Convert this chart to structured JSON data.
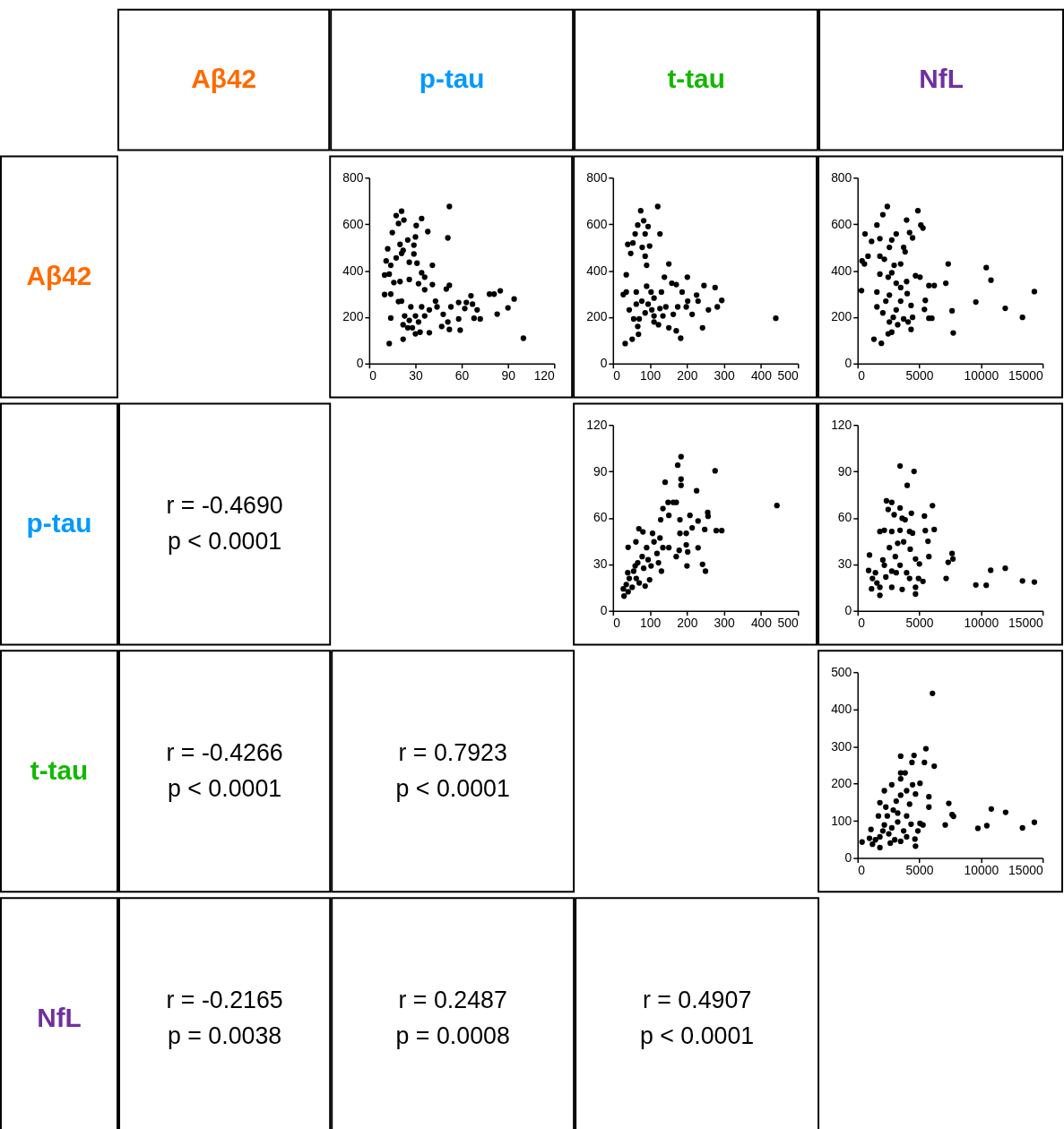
{
  "chart_data": [
    {
      "type": "other",
      "title": "Aβ42",
      "color": "#ff6a00"
    },
    {
      "type": "other",
      "title": "p-tau",
      "color": "#0099ff"
    },
    {
      "type": "other",
      "title": "t-tau",
      "color": "#13b800"
    },
    {
      "type": "other",
      "title": "NfL",
      "color": "#7030a0"
    },
    {
      "type": "other",
      "title": "Aβ42",
      "color": "#ff6a00"
    },
    {
      "type": "scatter",
      "color": "#000000",
      "marker": "circle",
      "xlim": [
        0,
        120
      ],
      "xticks": [
        0,
        30,
        60,
        90,
        120
      ],
      "ylim": [
        0,
        800
      ],
      "yticks": [
        0,
        200,
        400,
        600,
        800
      ],
      "x": [
        21,
        17.5,
        34,
        30.5,
        52,
        51,
        38,
        30,
        19,
        22.5,
        15,
        25,
        20,
        12,
        29,
        29,
        11,
        14,
        17.5,
        21,
        26,
        22,
        31,
        41,
        10,
        13,
        16,
        20,
        32,
        34,
        36,
        10,
        14,
        19,
        21,
        26,
        36,
        41,
        50,
        52,
        14,
        13,
        22,
        25,
        30,
        33,
        39,
        30,
        34,
        39,
        43,
        44,
        48,
        53,
        51,
        52,
        47,
        58,
        59,
        58,
        62,
        66,
        63,
        67,
        70,
        68,
        72,
        78,
        81,
        85,
        83,
        90,
        94,
        100,
        23,
        26,
        28,
        32,
        36,
        27,
        22
      ],
      "values": [
        656,
        637,
        624,
        594,
        676,
        541,
        568,
        545,
        603,
        618,
        564,
        532,
        513,
        494,
        510,
        472,
        442,
        423,
        455,
        474,
        436,
        487,
        432,
        423,
        381,
        385,
        349,
        353,
        344,
        391,
        372,
        297,
        299,
        267,
        269,
        362,
        318,
        340,
        321,
        337,
        196,
        86,
        105,
        154,
        128,
        135,
        133,
        205,
        244,
        231,
        269,
        244,
        212,
        244,
        179,
        147,
        160,
        192,
        144,
        263,
        237,
        292,
        263,
        256,
        231,
        195,
        192,
        299,
        299,
        313,
        213,
        240,
        278,
        109,
        205,
        186,
        154,
        179,
        205,
        244,
        167
      ]
    },
    {
      "type": "scatter",
      "color": "#000000",
      "marker": "circle",
      "xlim": [
        0,
        500
      ],
      "xticks": [
        0,
        100,
        200,
        300,
        400,
        500
      ],
      "ylim": [
        0,
        800
      ],
      "yticks": [
        0,
        200,
        400,
        600,
        800
      ],
      "x": [
        121,
        75,
        127,
        151,
        201,
        246,
        276,
        294,
        282,
        258,
        226,
        230,
        242,
        440,
        33,
        52,
        28,
        36,
        44,
        56,
        67,
        69,
        48,
        40,
        54,
        60,
        67,
        83,
        95,
        87,
        79,
        99,
        87,
        91,
        36,
        63,
        78,
        91,
        103,
        111,
        105,
        127,
        143,
        135,
        111,
        123,
        151,
        171,
        183,
        163,
        175,
        159,
        139,
        131,
        171,
        187,
        198,
        202,
        214,
        63,
        95,
        87,
        111,
        71
      ],
      "values": [
        676,
        658,
        558,
        429,
        372,
        336,
        327,
        272,
        244,
        231,
        295,
        269,
        154,
        195,
        86,
        105,
        297,
        382,
        231,
        192,
        160,
        126,
        474,
        513,
        519,
        558,
        596,
        615,
        590,
        558,
        500,
        506,
        462,
        423,
        308,
        308,
        269,
        333,
        308,
        282,
        231,
        237,
        244,
        205,
        179,
        167,
        154,
        141,
        109,
        212,
        244,
        346,
        372,
        308,
        340,
        308,
        244,
        269,
        212,
        256,
        256,
        218,
        205,
        192
      ]
    },
    {
      "type": "scatter",
      "color": "#000000",
      "marker": "circle",
      "xlim": [
        0,
        15000
      ],
      "xticks": [
        0,
        5000,
        10000,
        15000
      ],
      "ylim": [
        0,
        800
      ],
      "yticks": [
        0,
        200,
        400,
        600,
        800
      ],
      "x": [
        2408,
        4888,
        5129,
        5298,
        3973,
        4214,
        4455,
        2047,
        1565,
        602,
        1132,
        1806,
        2769,
        3130,
        2577,
        3732,
        3853,
        843,
        361,
        554,
        1806,
        2167,
        2962,
        3491,
        1806,
        2769,
        2480,
        3973,
        4695,
        5057,
        313,
        1565,
        2577,
        3130,
        3491,
        4021,
        7344,
        7151,
        5779,
        6212,
        10427,
        10812,
        9584,
        11968,
        14328,
        13364,
        7657,
        7753,
        5418,
        5490,
        5779,
        6020,
        4455,
        4334,
        4334,
        1325,
        1926,
        2480,
        2769,
        1565,
        2047,
        2577,
        3130,
        3491,
        3732,
        3250,
        4093,
        2288,
        2890
      ],
      "values": [
        676,
        658,
        596,
        583,
        618,
        564,
        541,
        641,
        596,
        558,
        526,
        538,
        532,
        558,
        500,
        500,
        481,
        462,
        442,
        429,
        462,
        449,
        423,
        429,
        385,
        391,
        372,
        353,
        378,
        372,
        314,
        308,
        295,
        346,
        327,
        301,
        429,
        346,
        336,
        336,
        413,
        359,
        265,
        238,
        310,
        199,
        227,
        132,
        233,
        272,
        195,
        195,
        199,
        250,
        147,
        105,
        87,
        128,
        135,
        244,
        218,
        179,
        231,
        269,
        192,
        167,
        179,
        269,
        199
      ]
    },
    {
      "type": "other",
      "title": "p-tau",
      "color": "#0099ff"
    },
    {
      "type": "other",
      "annotations": [
        "r = -0.4690",
        "p < 0.0001"
      ]
    },
    {
      "type": "scatter",
      "color": "#000000",
      "marker": "circle",
      "xlim": [
        0,
        500
      ],
      "xticks": [
        0,
        100,
        200,
        300,
        400,
        500
      ],
      "ylim": [
        0,
        120
      ],
      "yticks": [
        0,
        30,
        60,
        90,
        120
      ],
      "x": [
        184,
        175,
        276,
        141,
        184,
        184,
        226,
        443,
        163,
        171,
        149,
        135,
        151,
        129,
        181,
        208,
        230,
        256,
        257,
        214,
        248,
        279,
        294,
        70,
        81,
        41,
        62,
        181,
        198,
        179,
        198,
        202,
        230,
        242,
        250,
        200,
        171,
        151,
        127,
        107,
        111,
        91,
        79,
        67,
        95,
        119,
        135,
        123,
        131,
        103,
        83,
        56,
        40,
        63,
        44,
        36,
        28,
        30,
        41,
        52,
        71,
        87,
        99,
        60
      ],
      "values": [
        99.5,
        94,
        90.4,
        83,
        85,
        81,
        77.5,
        68,
        70,
        70,
        70,
        66,
        61.6,
        58.8,
        58.8,
        61.6,
        58,
        63.5,
        61,
        53.6,
        52.5,
        51.8,
        51.8,
        53,
        51,
        41,
        44.5,
        50,
        50,
        39,
        42.6,
        38,
        40.7,
        30,
        25.6,
        29,
        35,
        40.8,
        47,
        50,
        44.5,
        40.8,
        35,
        31,
        33,
        37,
        40.8,
        31,
        25.6,
        29,
        27.5,
        25.6,
        24.6,
        20.9,
        20.9,
        17,
        14.2,
        9.5,
        12.3,
        15.2,
        18,
        16,
        20,
        29
      ]
    },
    {
      "type": "scatter",
      "color": "#000000",
      "marker": "circle",
      "xlim": [
        0,
        15000
      ],
      "xticks": [
        0,
        5000,
        10000,
        15000
      ],
      "ylim": [
        0,
        120
      ],
      "yticks": [
        0,
        30,
        60,
        90,
        120
      ],
      "x": [
        3443,
        4575,
        4021,
        2336,
        2769,
        2480,
        3443,
        4359,
        2962,
        3612,
        3853,
        6068,
        5418,
        5490,
        6212,
        5707,
        5779,
        4214,
        4455,
        3443,
        1806,
        2167,
        2769,
        3250,
        3732,
        4262,
        4695,
        5009,
        4936,
        5298,
        4695,
        4695,
        963,
        891,
        1204,
        1132,
        1806,
        2047,
        2577,
        3057,
        3443,
        2769,
        2288,
        1565,
        1806,
        2769,
        3612,
        3973,
        4214,
        2167,
        3130,
        1445,
        7176,
        7344,
        7657,
        7729,
        9584,
        10427,
        10788,
        11968,
        13364,
        14328
      ],
      "values": [
        93.5,
        90,
        81,
        71,
        70,
        65.4,
        66.4,
        63,
        62,
        59.7,
        58.8,
        67.9,
        61.2,
        51.8,
        52.5,
        44.9,
        35,
        51.2,
        50.2,
        52,
        51.2,
        52,
        51.2,
        43.6,
        44.5,
        39.8,
        33.5,
        30.3,
        20.9,
        19,
        15.2,
        10.8,
        36,
        26,
        20.9,
        14.2,
        10,
        32.8,
        40.8,
        35,
        29.4,
        25.6,
        21.8,
        18,
        15.2,
        15.2,
        13.8,
        24.6,
        20.9,
        29.4,
        24.6,
        24.6,
        20.9,
        31.3,
        37,
        33.5,
        16.7,
        16.5,
        26.2,
        27.5,
        19.3,
        18.6
      ]
    },
    {
      "type": "other",
      "title": "t-tau",
      "color": "#13b800"
    },
    {
      "type": "other",
      "annotations": [
        "r = -0.4266",
        "p < 0.0001"
      ]
    },
    {
      "type": "other",
      "annotations": [
        "r = 0.7923",
        "p < 0.0001"
      ]
    },
    {
      "type": "scatter",
      "color": "#000000",
      "marker": "circle",
      "xlim": [
        0,
        15000
      ],
      "xticks": [
        0,
        5000,
        10000,
        15000
      ],
      "ylim": [
        0,
        500
      ],
      "yticks": [
        0,
        100,
        200,
        300,
        400,
        500
      ],
      "x": [
        6068,
        5538,
        3491,
        4575,
        4407,
        5418,
        6212,
        3491,
        3853,
        3491,
        5057,
        4455,
        2769,
        2167,
        3973,
        4695,
        5779,
        5779,
        7392,
        7657,
        7777,
        7103,
        9752,
        10475,
        10836,
        12000,
        13364,
        14328,
        5057,
        5298,
        4888,
        4647,
        4695,
        4334,
        3973,
        4214,
        3491,
        3130,
        2890,
        2288,
        2408,
        1806,
        1685,
        3250,
        2769,
        3732,
        3973,
        3010,
        2528,
        2047,
        1806,
        1084,
        963,
        361,
        1204,
        1806,
        2649,
        3491,
        1445,
        2167,
        3250
      ],
      "values": [
        443,
        294,
        274,
        276,
        257,
        257,
        247,
        229,
        229,
        213,
        201,
        197,
        197,
        181,
        181,
        172,
        165,
        137,
        147,
        117,
        112,
        89,
        80,
        87,
        132,
        123,
        81,
        96,
        93,
        89,
        73,
        51,
        32,
        91,
        113,
        145,
        169,
        153,
        129,
        137,
        113,
        149,
        113,
        97,
        81,
        73,
        57,
        49,
        65,
        73,
        57,
        77,
        53,
        43,
        37,
        28,
        40,
        45,
        49,
        89,
        121
      ]
    },
    {
      "type": "other",
      "title": "NfL",
      "color": "#7030a0"
    },
    {
      "type": "other",
      "annotations": [
        "r = -0.2165",
        "p = 0.0038"
      ]
    },
    {
      "type": "other",
      "annotations": [
        "r = 0.2487",
        "p = 0.0008"
      ]
    },
    {
      "type": "other",
      "annotations": [
        "r = 0.4907",
        "p < 0.0001"
      ]
    }
  ]
}
